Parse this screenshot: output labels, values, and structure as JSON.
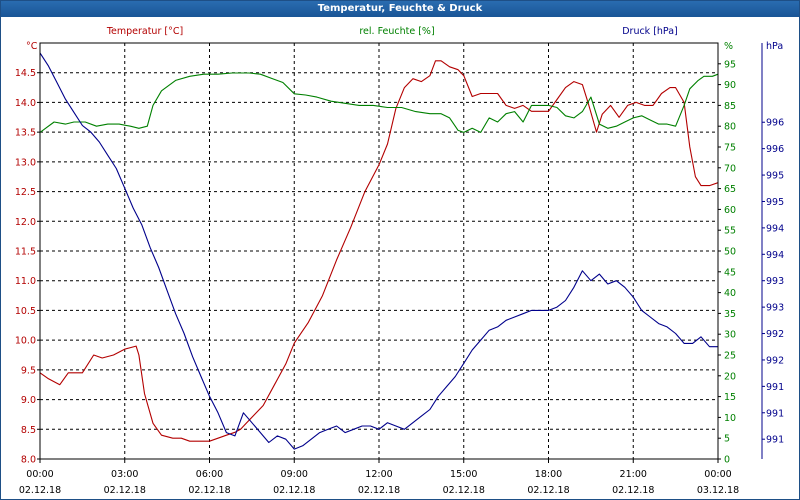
{
  "window": {
    "title": "Temperatur, Feuchte & Druck"
  },
  "colors": {
    "temperature": "#b30000",
    "humidity": "#008000",
    "pressure": "#00008b",
    "grid": "#000000",
    "axis": "#000000"
  },
  "chart_data": {
    "type": "line",
    "title": "Temperatur, Feuchte & Druck",
    "legend": {
      "temperature": "Temperatur [°C]",
      "humidity": "rel. Feuchte [%]",
      "pressure": "Druck [hPa]"
    },
    "left_axis": {
      "unit": "°C",
      "ylim": [
        8.0,
        15.0
      ],
      "ticks": [
        "8.0",
        "8.5",
        "9.0",
        "9.5",
        "10.0",
        "10.5",
        "11.0",
        "11.5",
        "12.0",
        "12.5",
        "13.0",
        "13.5",
        "14.0",
        "14.5"
      ],
      "tick_values": [
        8.0,
        8.5,
        9.0,
        9.5,
        10.0,
        10.5,
        11.0,
        11.5,
        12.0,
        12.5,
        13.0,
        13.5,
        14.0,
        14.5
      ]
    },
    "right_axis_1": {
      "unit": "%",
      "ylim": [
        0,
        100
      ],
      "ticks": [
        "0",
        "5",
        "10",
        "15",
        "20",
        "25",
        "30",
        "35",
        "40",
        "45",
        "50",
        "55",
        "60",
        "65",
        "70",
        "75",
        "80",
        "85",
        "90",
        "95"
      ],
      "tick_values": [
        0,
        5,
        10,
        15,
        20,
        25,
        30,
        35,
        40,
        45,
        50,
        55,
        60,
        65,
        70,
        75,
        80,
        85,
        90,
        95
      ]
    },
    "right_axis_2": {
      "unit": "hPa",
      "ylim": [
        990.6,
        996.9
      ],
      "ticks": [
        "991",
        "991",
        "991",
        "992",
        "992",
        "993",
        "993",
        "994",
        "994",
        "995",
        "995",
        "996",
        "996"
      ],
      "tick_values": [
        990.9,
        991.3,
        991.7,
        992.1,
        992.5,
        992.9,
        993.3,
        993.7,
        994.1,
        994.5,
        994.9,
        995.3,
        995.7
      ]
    },
    "x_axis": {
      "range_hours": [
        0,
        24
      ],
      "tick_hours": [
        0,
        3,
        6,
        9,
        12,
        15,
        18,
        21,
        24
      ],
      "times": [
        "00:00",
        "03:00",
        "06:00",
        "09:00",
        "12:00",
        "15:00",
        "18:00",
        "21:00",
        "00:00"
      ],
      "dates": [
        "02.12.18",
        "02.12.18",
        "02.12.18",
        "02.12.18",
        "02.12.18",
        "02.12.18",
        "02.12.18",
        "02.12.18",
        "03.12.18"
      ]
    },
    "series": [
      {
        "name": "Temperatur",
        "unit": "°C",
        "x": [
          0,
          0.3,
          0.7,
          1.0,
          1.5,
          1.9,
          2.2,
          2.6,
          3.0,
          3.4,
          3.5,
          3.7,
          4.0,
          4.3,
          4.7,
          5.0,
          5.3,
          5.7,
          6.0,
          6.3,
          6.6,
          6.9,
          7.1,
          7.3,
          7.6,
          7.9,
          8.3,
          8.7,
          9.0,
          9.5,
          10.0,
          10.5,
          11.0,
          11.5,
          12.0,
          12.3,
          12.6,
          12.9,
          13.2,
          13.5,
          13.8,
          14.0,
          14.2,
          14.5,
          14.8,
          15.0,
          15.3,
          15.6,
          15.9,
          16.2,
          16.5,
          16.8,
          17.1,
          17.4,
          17.7,
          18.0,
          18.3,
          18.6,
          18.9,
          19.2,
          19.4,
          19.7,
          19.9,
          20.2,
          20.5,
          20.8,
          21.1,
          21.4,
          21.7,
          22.0,
          22.3,
          22.5,
          22.8,
          23.0,
          23.2,
          23.4,
          23.7,
          24.0
        ],
        "values": [
          9.45,
          9.35,
          9.25,
          9.45,
          9.45,
          9.75,
          9.7,
          9.75,
          9.85,
          9.9,
          9.75,
          9.1,
          8.6,
          8.4,
          8.35,
          8.35,
          8.3,
          8.3,
          8.3,
          8.35,
          8.4,
          8.45,
          8.5,
          8.6,
          8.75,
          8.9,
          9.25,
          9.6,
          9.95,
          10.3,
          10.75,
          11.35,
          11.9,
          12.5,
          12.95,
          13.3,
          13.9,
          14.25,
          14.4,
          14.35,
          14.45,
          14.7,
          14.7,
          14.6,
          14.55,
          14.45,
          14.1,
          14.15,
          14.15,
          14.15,
          13.95,
          13.9,
          13.95,
          13.85,
          13.85,
          13.85,
          14.05,
          14.25,
          14.35,
          14.3,
          14.0,
          13.5,
          13.8,
          13.95,
          13.75,
          13.95,
          14.0,
          13.95,
          13.95,
          14.15,
          14.25,
          14.25,
          14.0,
          13.25,
          12.75,
          12.6,
          12.6,
          12.65
        ]
      },
      {
        "name": "rel. Feuchte",
        "unit": "%",
        "x": [
          0,
          0.5,
          0.9,
          1.2,
          1.6,
          2.0,
          2.4,
          2.8,
          3.2,
          3.5,
          3.8,
          4.0,
          4.3,
          4.8,
          5.3,
          5.8,
          6.3,
          6.8,
          7.4,
          7.8,
          8.2,
          8.6,
          9.0,
          9.4,
          9.8,
          10.3,
          10.8,
          11.3,
          11.8,
          12.3,
          12.8,
          13.3,
          13.8,
          14.2,
          14.5,
          14.8,
          15.0,
          15.3,
          15.6,
          15.9,
          16.2,
          16.5,
          16.8,
          17.1,
          17.4,
          17.7,
          18.0,
          18.3,
          18.6,
          18.9,
          19.2,
          19.5,
          19.8,
          20.1,
          20.4,
          20.7,
          21.0,
          21.3,
          21.6,
          21.9,
          22.2,
          22.5,
          22.8,
          23.0,
          23.3,
          23.5,
          23.8,
          24.0
        ],
        "values": [
          78.5,
          81.0,
          80.5,
          81.0,
          81.0,
          80.0,
          80.5,
          80.5,
          80.0,
          79.5,
          80.0,
          85.0,
          88.5,
          91.0,
          92.0,
          92.5,
          92.5,
          92.8,
          92.8,
          92.5,
          91.5,
          90.5,
          87.8,
          87.5,
          87.0,
          86.0,
          85.5,
          85.0,
          85.0,
          84.5,
          84.5,
          83.5,
          83.0,
          83.0,
          82.0,
          79.0,
          78.5,
          79.5,
          78.5,
          82.0,
          81.0,
          83.0,
          83.5,
          81.0,
          85.0,
          85.0,
          85.0,
          84.5,
          82.5,
          82.0,
          83.5,
          87.0,
          80.5,
          79.5,
          80.0,
          81.0,
          82.0,
          82.5,
          81.5,
          80.5,
          80.5,
          80.0,
          85.0,
          89.0,
          91.0,
          92.0,
          92.0,
          92.5
        ]
      },
      {
        "name": "Druck",
        "unit": "hPa",
        "x": [
          0,
          0.3,
          0.6,
          0.9,
          1.2,
          1.5,
          1.8,
          2.1,
          2.4,
          2.7,
          3.0,
          3.3,
          3.6,
          3.9,
          4.2,
          4.5,
          4.8,
          5.1,
          5.4,
          5.7,
          6.0,
          6.3,
          6.6,
          6.9,
          7.2,
          7.5,
          7.8,
          8.1,
          8.4,
          8.7,
          9.0,
          9.3,
          9.6,
          9.9,
          10.2,
          10.5,
          10.8,
          11.1,
          11.4,
          11.7,
          12.0,
          12.3,
          12.6,
          12.9,
          13.2,
          13.5,
          13.8,
          14.1,
          14.4,
          14.7,
          15.0,
          15.3,
          15.6,
          15.9,
          16.2,
          16.5,
          16.8,
          17.1,
          17.4,
          17.7,
          18.0,
          18.3,
          18.6,
          18.9,
          19.2,
          19.5,
          19.8,
          20.1,
          20.4,
          20.7,
          21.0,
          21.3,
          21.6,
          21.9,
          22.2,
          22.5,
          22.8,
          23.1,
          23.4,
          23.7,
          24.0
        ],
        "values": [
          996.75,
          996.55,
          996.3,
          996.05,
          995.85,
          995.65,
          995.55,
          995.4,
          995.2,
          995.0,
          994.7,
          994.4,
          994.15,
          993.8,
          993.5,
          993.15,
          992.8,
          992.5,
          992.15,
          991.85,
          991.55,
          991.3,
          991.0,
          990.95,
          991.3,
          991.15,
          991.0,
          990.85,
          990.95,
          990.9,
          990.75,
          990.8,
          990.9,
          991.0,
          991.05,
          991.1,
          991.0,
          991.05,
          991.1,
          991.1,
          991.05,
          991.15,
          991.1,
          991.05,
          991.15,
          991.25,
          991.35,
          991.55,
          991.7,
          991.85,
          992.05,
          992.25,
          992.4,
          992.55,
          992.6,
          992.7,
          992.75,
          992.8,
          992.85,
          992.85,
          992.85,
          992.9,
          993.0,
          993.2,
          993.45,
          993.3,
          993.4,
          993.25,
          993.3,
          993.2,
          993.05,
          992.85,
          992.75,
          992.65,
          992.6,
          992.5,
          992.35,
          992.35,
          992.45,
          992.3,
          992.3
        ]
      }
    ]
  }
}
